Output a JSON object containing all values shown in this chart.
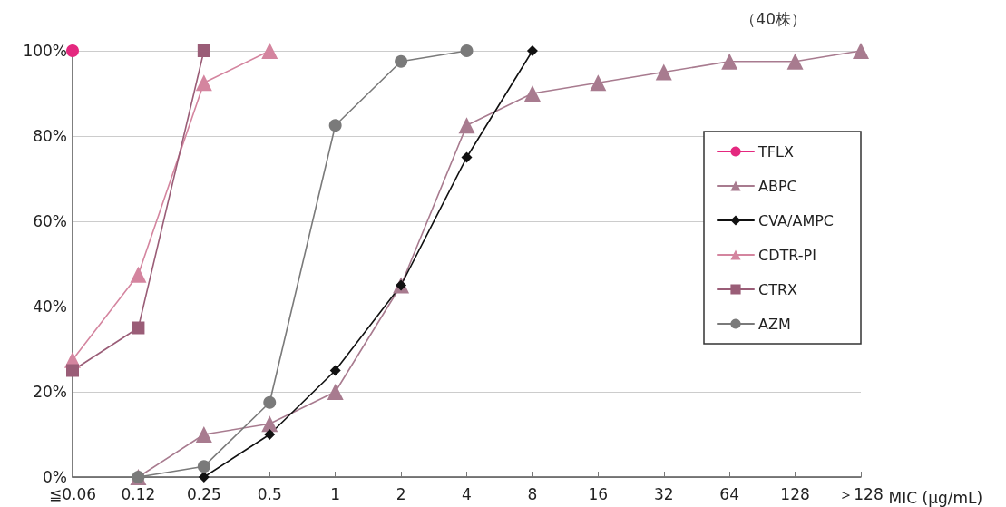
{
  "chart_data": {
    "type": "line",
    "categories": [
      "≦0.06",
      "0.12",
      "0.25",
      "0.5",
      "1",
      "2",
      "4",
      "8",
      "16",
      "32",
      "64",
      "128",
      "＞128"
    ],
    "xlabel": "MIC (μg/mL)",
    "annotations": [
      "（40株）"
    ],
    "series": [
      {
        "name": "TFLX",
        "color": "#e4287f",
        "marker": "circle",
        "values": [
          100,
          null,
          null,
          null,
          null,
          null,
          null,
          null,
          null,
          null,
          null,
          null,
          null
        ]
      },
      {
        "name": "ABPC",
        "color": "#a87b8f",
        "marker": "triangle",
        "values": [
          null,
          0,
          10,
          12.5,
          20,
          45,
          82.5,
          90,
          92.5,
          95,
          97.5,
          97.5,
          100
        ]
      },
      {
        "name": "CVA/AMPC",
        "color": "#111111",
        "marker": "diamond",
        "values": [
          null,
          null,
          0,
          10,
          25,
          45,
          75,
          100,
          null,
          null,
          null,
          null,
          null
        ]
      },
      {
        "name": "CDTR-PI",
        "color": "#d4859f",
        "marker": "triangle",
        "values": [
          27.5,
          47.5,
          92.5,
          100,
          null,
          null,
          null,
          null,
          null,
          null,
          null,
          null,
          null
        ]
      },
      {
        "name": "CTRX",
        "color": "#9a5d77",
        "marker": "square",
        "values": [
          25,
          35,
          100,
          null,
          null,
          null,
          null,
          null,
          null,
          null,
          null,
          null,
          null
        ]
      },
      {
        "name": "AZM",
        "color": "#7a7a7a",
        "marker": "circle",
        "values": [
          null,
          0,
          2.5,
          17.5,
          82.5,
          97.5,
          100,
          null,
          null,
          null,
          null,
          null,
          null
        ]
      }
    ],
    "ylim": [
      0,
      100
    ],
    "yticks": [
      {
        "value": 0,
        "label": "0%"
      },
      {
        "value": 20,
        "label": "20%"
      },
      {
        "value": 40,
        "label": "40%"
      },
      {
        "value": 60,
        "label": "60%"
      },
      {
        "value": 80,
        "label": "80%"
      },
      {
        "value": 100,
        "label": "100%"
      }
    ],
    "grid": "y",
    "legend": "right",
    "line_style": "solid"
  }
}
